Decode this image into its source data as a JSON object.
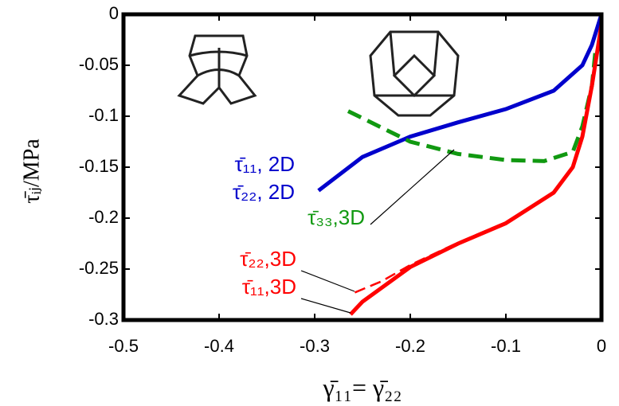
{
  "chart_data": {
    "type": "line",
    "xlabel": "γ̄₁₁= γ̄₂₂",
    "ylabel": "τ̄ᵢⱼ/MPa",
    "xlim": [
      -0.5,
      0
    ],
    "xticks": [
      -0.5,
      -0.4,
      -0.3,
      -0.2,
      -0.1,
      0
    ],
    "ylim": [
      -0.3,
      0
    ],
    "yticks": [
      -0.3,
      -0.25,
      -0.2,
      -0.15,
      -0.1,
      -0.05,
      0
    ],
    "series": [
      {
        "name": "τ̄₁₁, 2D",
        "color": "#0000cc",
        "dashed": false,
        "x": [
          -0.296,
          -0.25,
          -0.2,
          -0.15,
          -0.1,
          -0.05,
          -0.02,
          -0.01,
          0
        ],
        "values": [
          -0.173,
          -0.14,
          -0.12,
          -0.106,
          -0.093,
          -0.075,
          -0.05,
          -0.03,
          0
        ]
      },
      {
        "name": "τ̄₃₃,3D",
        "color": "#119911",
        "dashed": true,
        "x": [
          -0.265,
          -0.2,
          -0.15,
          -0.1,
          -0.06,
          -0.03,
          -0.02,
          -0.01,
          -0.006
        ],
        "values": [
          -0.095,
          -0.125,
          -0.137,
          -0.143,
          -0.144,
          -0.135,
          -0.11,
          -0.07,
          -0.033
        ]
      },
      {
        "name": "τ̄₂₂,3D",
        "color": "#ff0000",
        "dashed": true,
        "x": [
          -0.258,
          -0.23,
          -0.2,
          -0.15,
          -0.1,
          -0.05,
          -0.03,
          -0.02,
          -0.01,
          0
        ],
        "values": [
          -0.273,
          -0.262,
          -0.246,
          -0.224,
          -0.204,
          -0.175,
          -0.15,
          -0.12,
          -0.07,
          -0.01
        ]
      },
      {
        "name": "τ̄₁₁,3D",
        "color": "#ff0000",
        "dashed": false,
        "x": [
          -0.2625,
          -0.25,
          -0.2,
          -0.15,
          -0.1,
          -0.05,
          -0.03,
          -0.02,
          -0.01,
          0
        ],
        "values": [
          -0.2945,
          -0.282,
          -0.248,
          -0.225,
          -0.205,
          -0.175,
          -0.15,
          -0.12,
          -0.07,
          -0.01
        ]
      }
    ],
    "annotations": [
      "τ̄₂₂, 2D"
    ]
  }
}
